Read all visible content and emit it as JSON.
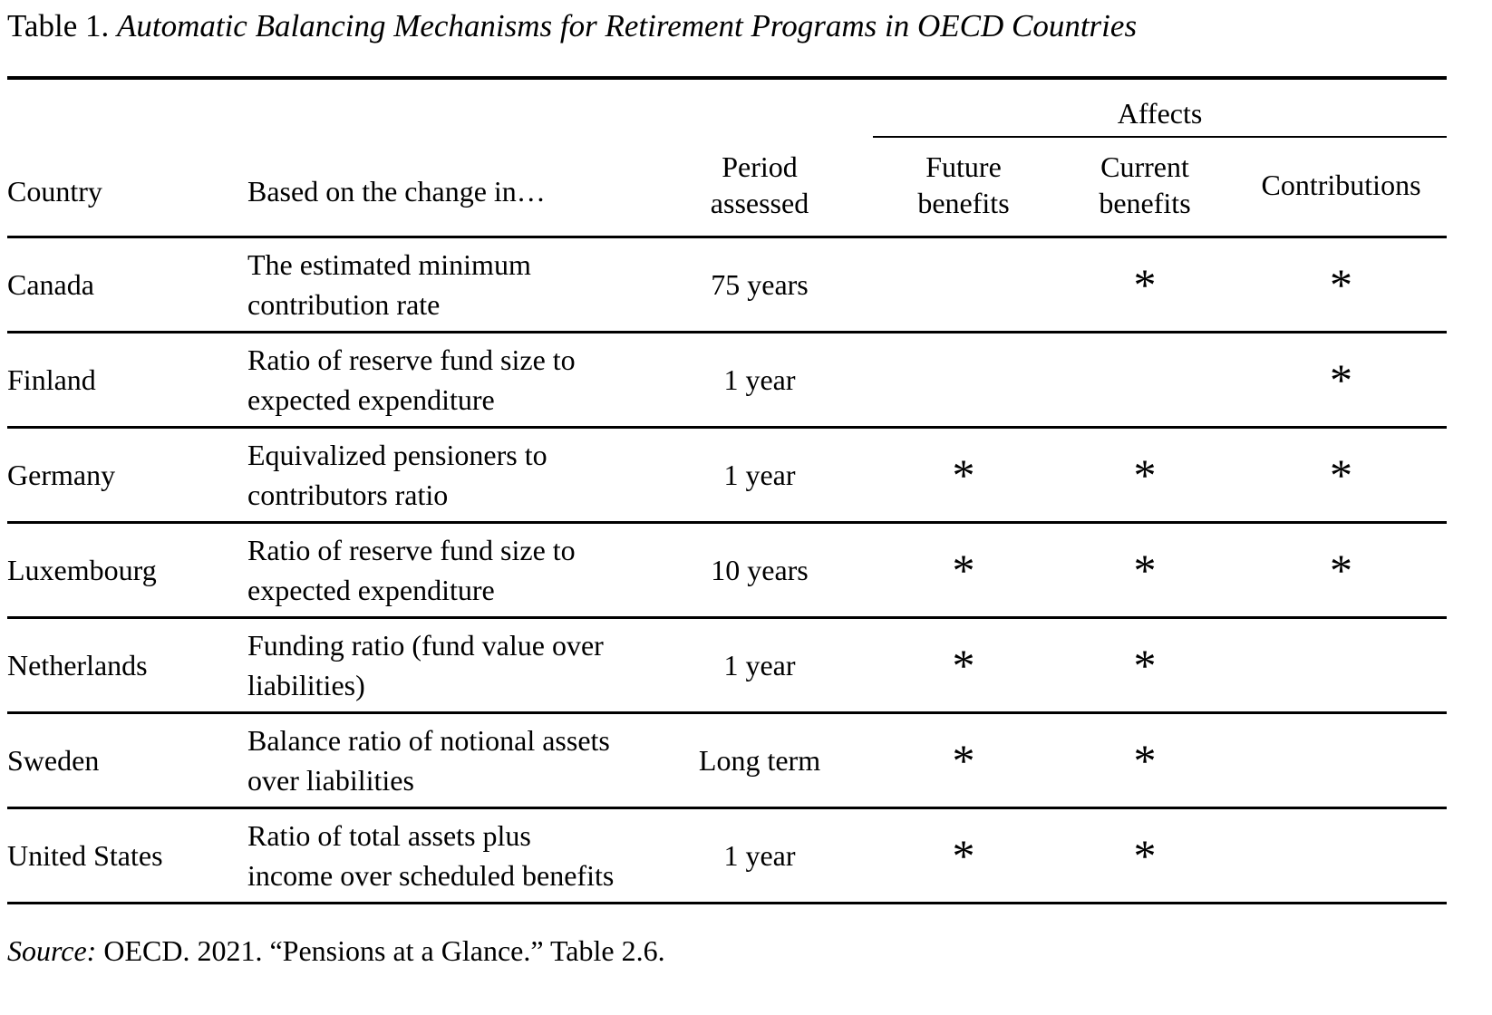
{
  "title": {
    "prefix": "Table 1. ",
    "italic": "Automatic Balancing Mechanisms for Retirement Programs in OECD Countries"
  },
  "table": {
    "header": {
      "country": "Country",
      "basis": "Based on the change in…",
      "period": "Period assessed",
      "affects": "Affects",
      "future": "Future benefits",
      "current": "Current benefits",
      "contributions": "Contributions"
    },
    "rows": [
      {
        "country": "Canada",
        "basis": "The estimated minimum contribution rate",
        "period": "75 years",
        "future": "",
        "current": "*",
        "contributions": "*"
      },
      {
        "country": "Finland",
        "basis": "Ratio of reserve fund size to expected expenditure",
        "period": "1 year",
        "future": "",
        "current": "",
        "contributions": "*"
      },
      {
        "country": "Germany",
        "basis": "Equivalized pensioners to contributors ratio",
        "period": "1 year",
        "future": "*",
        "current": "*",
        "contributions": "*"
      },
      {
        "country": "Luxembourg",
        "basis": "Ratio of reserve fund size to expected expenditure",
        "period": "10 years",
        "future": "*",
        "current": "*",
        "contributions": "*"
      },
      {
        "country": "Netherlands",
        "basis": "Funding ratio (fund value over liabilities)",
        "period": "1 year",
        "future": "*",
        "current": "*",
        "contributions": ""
      },
      {
        "country": "Sweden",
        "basis": "Balance ratio of notional assets over liabilities",
        "period": "Long term",
        "future": "*",
        "current": "*",
        "contributions": ""
      },
      {
        "country": "United States",
        "basis": "Ratio of total assets plus income over scheduled benefits",
        "period": "1 year",
        "future": "*",
        "current": "*",
        "contributions": ""
      }
    ]
  },
  "source": {
    "label": "Source:",
    "text": " OECD. 2021. “Pensions at a Glance.” Table 2.6."
  }
}
